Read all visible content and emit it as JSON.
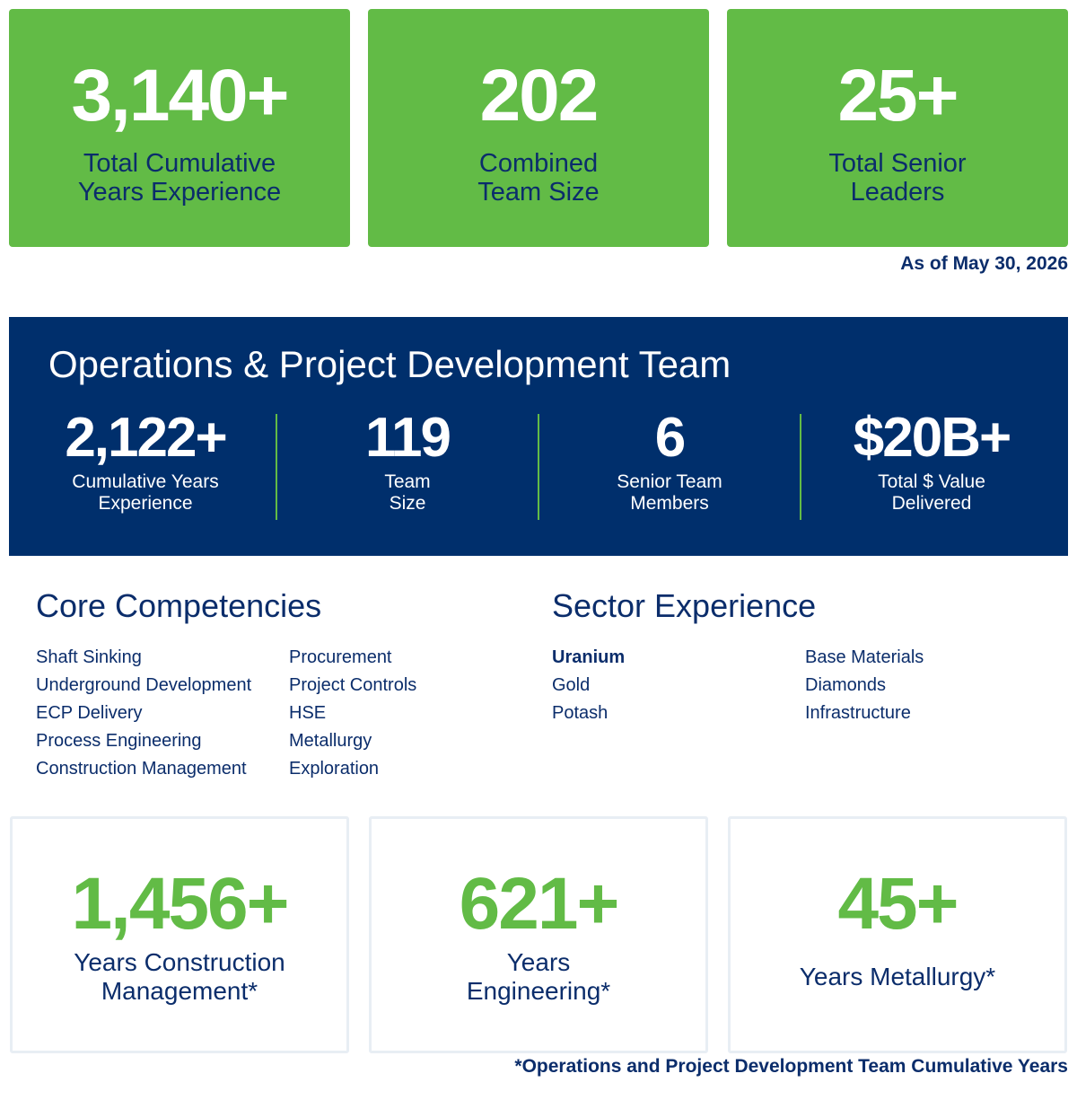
{
  "top_stats": [
    {
      "value": "3,140+",
      "label": [
        "Total Cumulative",
        "Years Experience"
      ]
    },
    {
      "value": "202",
      "label": [
        "Combined",
        "Team Size"
      ]
    },
    {
      "value": "25+",
      "label": [
        "Total Senior",
        "Leaders"
      ]
    }
  ],
  "as_of": "As of May 30, 2026",
  "ops_team": {
    "title": "Operations & Project Development Team",
    "stats": [
      {
        "value": "2,122+",
        "label": [
          "Cumulative Years",
          "Experience"
        ]
      },
      {
        "value": "119",
        "label": [
          "Team",
          "Size"
        ]
      },
      {
        "value": "6",
        "label": [
          "Senior Team",
          "Members"
        ]
      },
      {
        "value": "$20B+",
        "label": [
          "Total $ Value",
          "Delivered"
        ]
      }
    ]
  },
  "core_competencies": {
    "title": "Core Competencies",
    "columns": [
      [
        "Shaft Sinking",
        "Underground Development",
        "ECP Delivery",
        "Process Engineering",
        "Construction Management"
      ],
      [
        "Procurement",
        "Project Controls",
        "HSE",
        "Metallurgy",
        "Exploration"
      ]
    ]
  },
  "sector_experience": {
    "title": "Sector Experience",
    "columns": [
      [
        "Uranium",
        "Gold",
        "Potash"
      ],
      [
        "Base Materials",
        "Diamonds",
        "Infrastructure"
      ]
    ]
  },
  "bottom_stats": [
    {
      "value": "1,456+",
      "label": [
        "Years Construction",
        "Management*"
      ]
    },
    {
      "value": "621+",
      "label": [
        "Years",
        "Engineering*"
      ]
    },
    {
      "value": "45+",
      "label": [
        "Years Metallurgy*"
      ]
    }
  ],
  "footnote": "*Operations and Project Development Team Cumulative Years"
}
